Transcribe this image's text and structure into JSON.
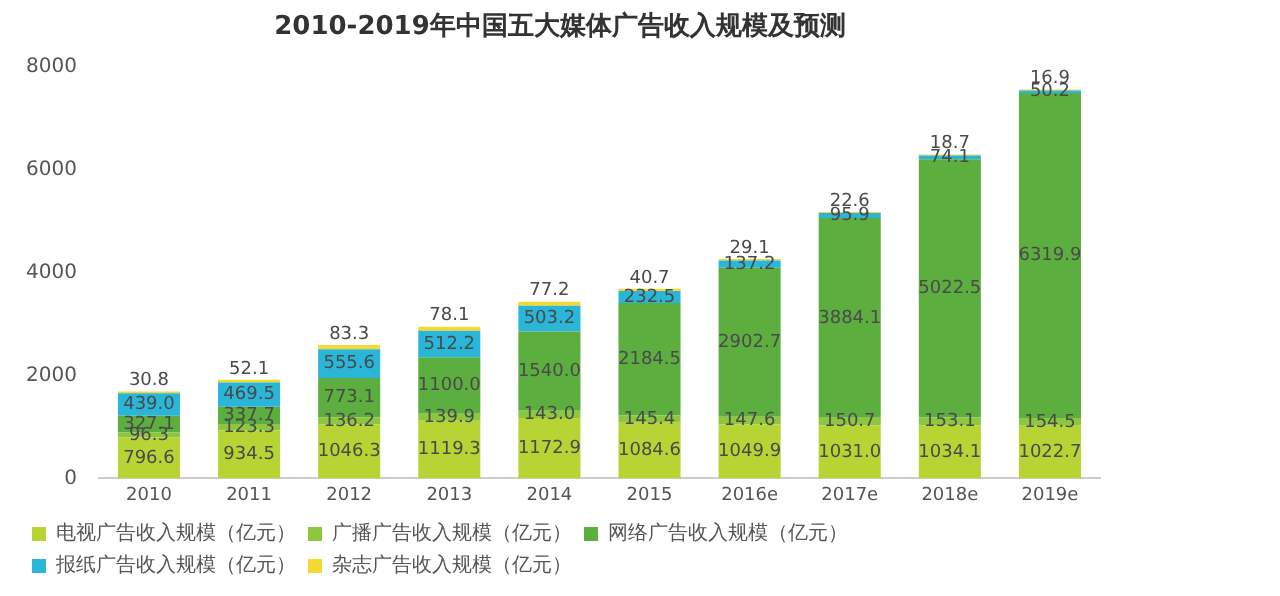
{
  "chart_data": {
    "type": "bar",
    "title": "2010-2019年中国五大媒体广告收入规模及预测",
    "stacked": true,
    "legend": "bottom",
    "grid": false,
    "categories": [
      "2010",
      "2011",
      "2012",
      "2013",
      "2014",
      "2015",
      "2016e",
      "2017e",
      "2018e",
      "2019e"
    ],
    "ylim": [
      0,
      8000
    ],
    "yticks": [
      0,
      2000,
      4000,
      6000,
      8000
    ],
    "series": [
      {
        "name": "电视广告收入规模（亿元）",
        "color": "#b6d433",
        "values": [
          796.6,
          934.5,
          1046.3,
          1119.3,
          1172.9,
          1084.6,
          1049.9,
          1031,
          1034.1,
          1022.7
        ],
        "value_labels": [
          "796.6",
          "934.5",
          "1046.3",
          "1119.3",
          "1172.9",
          "1084.6",
          "1049.9",
          "1031.0",
          "1034.1",
          "1022.7"
        ]
      },
      {
        "name": "广播广告收入规模（亿元）",
        "color": "#8dc63f",
        "values": [
          96.3,
          123.3,
          136.2,
          139.9,
          143,
          145.4,
          147.6,
          150.7,
          153.1,
          154.5
        ],
        "value_labels": [
          "96.3",
          "123.3",
          "136.2",
          "139.9",
          "143.0",
          "145.4",
          "147.6",
          "150.7",
          "153.1",
          "154.5"
        ]
      },
      {
        "name": "网络广告收入规模（亿元）",
        "color": "#5cae3f",
        "values": [
          327.1,
          337.7,
          773.1,
          1100,
          1540,
          2184.5,
          2902.7,
          3884.1,
          5022.5,
          6319.9
        ],
        "value_labels": [
          "327.1",
          "337.7",
          "773.1",
          "1100.0",
          "1540.0",
          "2184.5",
          "2902.7",
          "3884.1",
          "5022.5",
          "6319.9"
        ]
      },
      {
        "name": "报纸广告收入规模（亿元）",
        "color": "#29b6d8",
        "values": [
          439,
          469.5,
          555.6,
          512.2,
          503.2,
          232.5,
          137.2,
          95.9,
          74.1,
          50.2
        ],
        "value_labels": [
          "439.0",
          "469.5",
          "555.6",
          "512.2",
          "503.2",
          "232.5",
          "137.2",
          "95.9",
          "74.1",
          "50.2"
        ]
      },
      {
        "name": "杂志广告收入规模（亿元）",
        "color": "#f5d830",
        "values": [
          30.8,
          52.1,
          83.3,
          78.1,
          77.2,
          40.7,
          29.1,
          22.6,
          18.7,
          16.9
        ],
        "value_labels": [
          "30.8",
          "52.1",
          "83.3",
          "78.1",
          "77.2",
          "40.7",
          "29.1",
          "22.6",
          "18.7",
          "16.9"
        ]
      }
    ]
  }
}
